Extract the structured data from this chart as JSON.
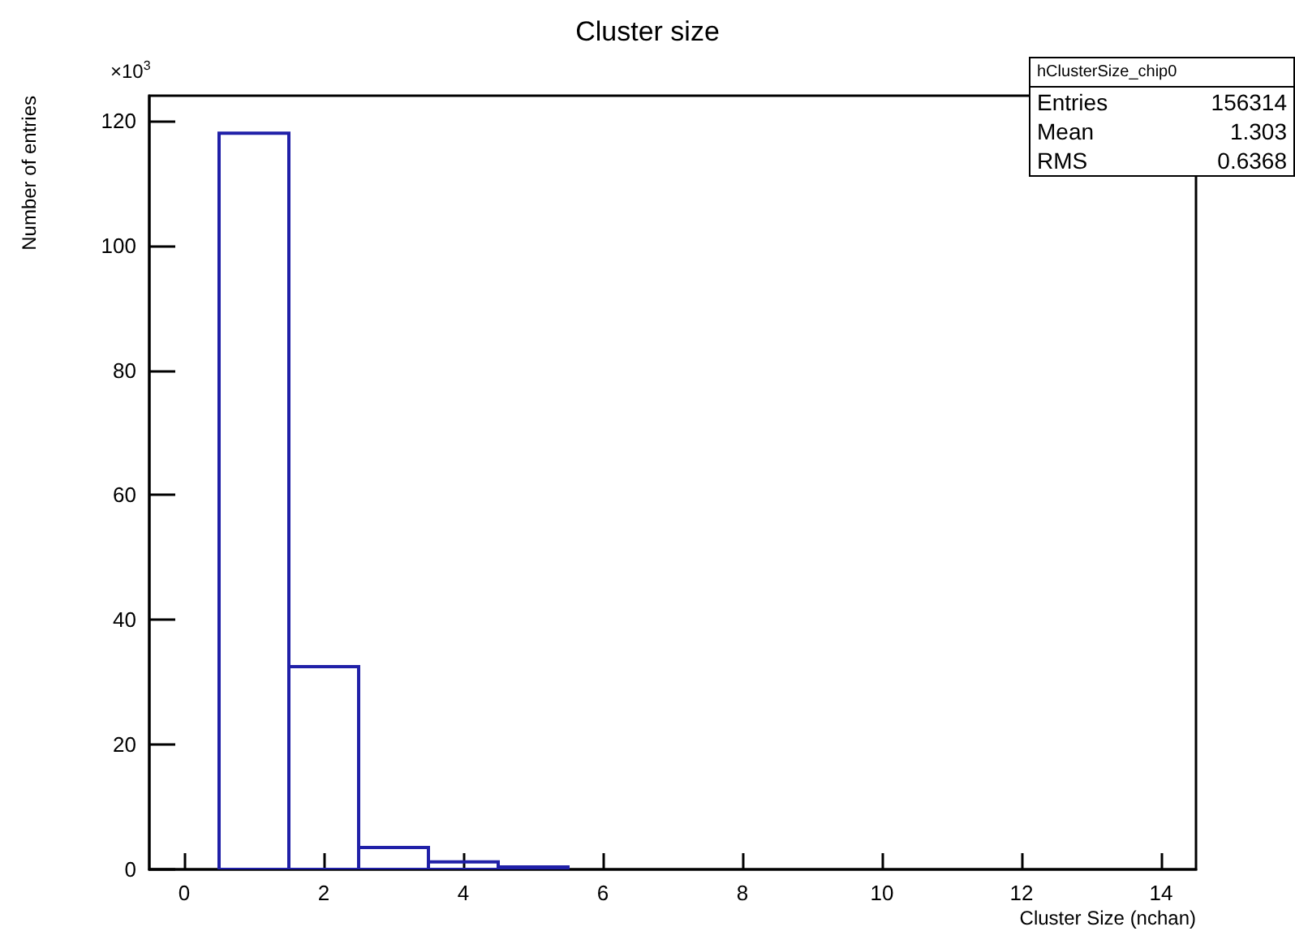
{
  "chart_data": {
    "type": "histogram",
    "title": "Cluster size",
    "xlabel": "Cluster Size (nchan)",
    "ylabel": "Number of entries",
    "bins": [
      -0.5,
      0.5,
      1.5,
      2.5,
      3.5,
      4.5,
      5.5,
      6.5,
      7.5,
      8.5,
      9.5,
      10.5,
      11.5,
      12.5,
      13.5,
      14.5
    ],
    "values": [
      0,
      118,
      32.5,
      3.5,
      1.2,
      0.4,
      0,
      0,
      0,
      0,
      0,
      0,
      0,
      0,
      0
    ],
    "color": "#2020a8",
    "xlim": [
      -0.5,
      14.5
    ],
    "xticks": [
      0,
      2,
      4,
      6,
      8,
      10,
      12,
      14
    ],
    "ylim": [
      0,
      124
    ],
    "yticks": [
      0,
      20,
      40,
      60,
      80,
      100,
      120
    ],
    "annotations": [
      "×10$^{3}$",
      "hClusterSize_chip0",
      "Entries",
      "156314",
      "Mean",
      "1.303",
      "RMS",
      "0.6368"
    ]
  }
}
